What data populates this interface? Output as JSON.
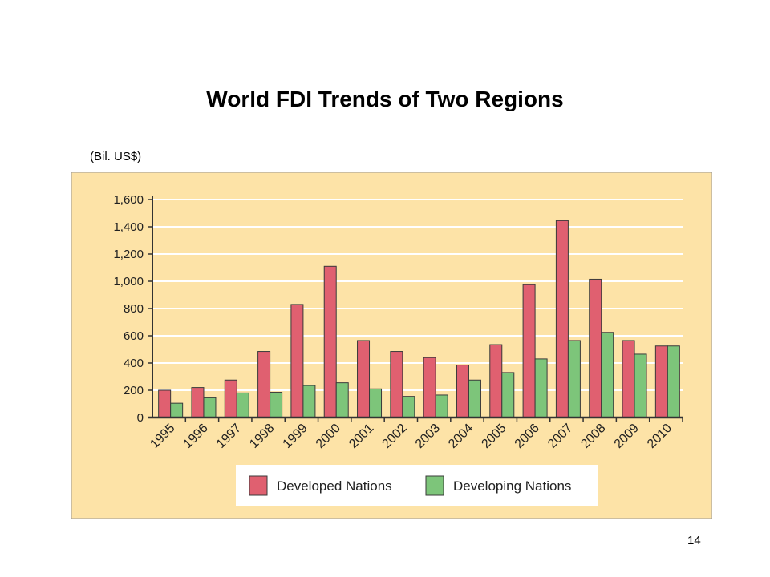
{
  "slide": {
    "title": "World FDI Trends of Two Regions",
    "unit_label": "(Bil. US$)",
    "page_number": "14"
  },
  "colors": {
    "panel_background": "#fde3a7",
    "developed": "#e06070",
    "developing": "#7dc57a",
    "gridline": "#ffffff",
    "axis": "#333333"
  },
  "chart_data": {
    "type": "bar",
    "categories": [
      "1995",
      "1996",
      "1997",
      "1998",
      "1999",
      "2000",
      "2001",
      "2002",
      "2003",
      "2004",
      "2005",
      "2006",
      "2007",
      "2008",
      "2009",
      "2010"
    ],
    "series": [
      {
        "name": "Developed Nations",
        "values": [
          200,
          220,
          275,
          485,
          830,
          1110,
          565,
          485,
          440,
          385,
          535,
          975,
          1445,
          1015,
          565,
          525
        ]
      },
      {
        "name": "Developing Nations",
        "values": [
          105,
          145,
          180,
          185,
          235,
          255,
          210,
          155,
          165,
          275,
          330,
          430,
          565,
          625,
          465,
          525
        ]
      }
    ],
    "ylim": [
      0,
      1600
    ],
    "yticks": [
      0,
      200,
      400,
      600,
      800,
      1000,
      1200,
      1400,
      1600
    ],
    "ytick_labels": [
      "0",
      "200",
      "400",
      "600",
      "800",
      "1,000",
      "1,200",
      "1,400",
      "1,600"
    ],
    "grid": true,
    "legend_position": "bottom-center"
  }
}
